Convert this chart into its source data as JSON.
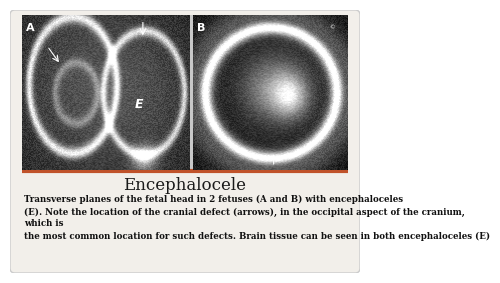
{
  "title": "Encephalocele",
  "title_fontsize": 12,
  "line1": "Transverse planes of the fetal head in 2 fetuses (A and B) with encephaloceles",
  "line2": "(E). Note the location of the cranial defect (arrows), in the occipital aspect of the cranium,",
  "line3": "which is",
  "line4": "the most common location for such defects. Brain tissue can be seen in both encephaloceles (E)",
  "body_fontsize": 6.2,
  "background_color": "#f2efea",
  "divider_color": "#c0522a",
  "divider_thickness": 3,
  "outer_bg": "#ffffff",
  "card_edge": "#cccccc",
  "img_panel_bg": "#c8c8c8",
  "img_left_bg": "#1e1e1e",
  "img_right_bg": "#181818"
}
